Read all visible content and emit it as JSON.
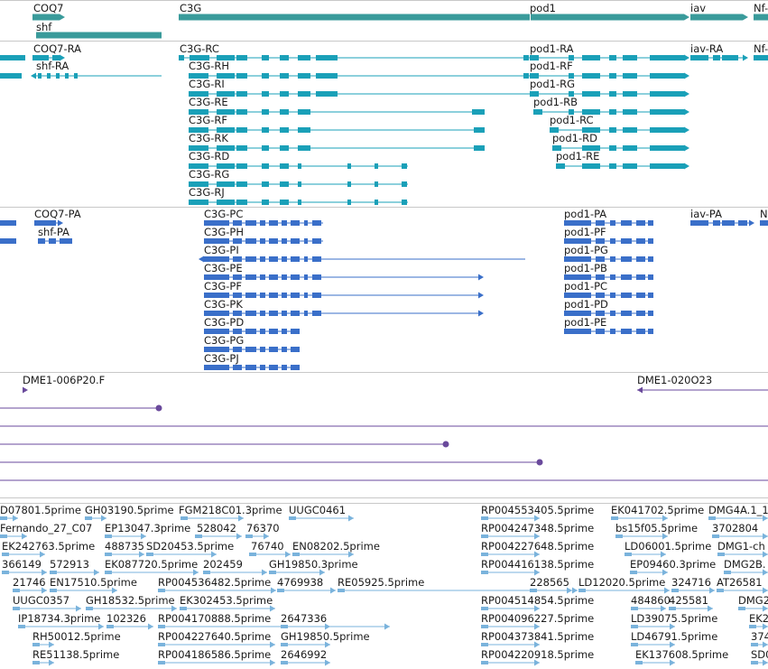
{
  "colors": {
    "gene": "#3a9b9b",
    "transcript_mrna": "#1aa0b8",
    "cds": "#3a6fc9",
    "clone": "#6a4a9c",
    "est": "#7ab3dc",
    "divider": "#c8c8c8"
  },
  "genes": {
    "labels": [
      "COQ7",
      "C3G",
      "pod1",
      "iav",
      "Nf-",
      "shf"
    ]
  },
  "transcripts": {
    "labels": [
      "COQ7-RA",
      "shf-RA",
      "C3G-RC",
      "C3G-RH",
      "C3G-RI",
      "C3G-RE",
      "C3G-RF",
      "C3G-RK",
      "C3G-RD",
      "C3G-RG",
      "C3G-RJ",
      "pod1-RA",
      "pod1-RF",
      "pod1-RG",
      "pod1-RB",
      "pod1-RC",
      "pod1-RD",
      "pod1-RE",
      "iav-RA",
      "Nf-"
    ]
  },
  "cds": {
    "labels": [
      "COQ7-PA",
      "shf-PA",
      "C3G-PC",
      "C3G-PH",
      "C3G-PI",
      "C3G-PE",
      "C3G-PF",
      "C3G-PK",
      "C3G-PD",
      "C3G-PG",
      "C3G-PJ",
      "pod1-PA",
      "pod1-PF",
      "pod1-PG",
      "pod1-PB",
      "pod1-PC",
      "pod1-PD",
      "pod1-PE",
      "iav-PA",
      "N"
    ]
  },
  "clones": {
    "labels": [
      "DME1-006P20.F",
      "DME1-020O23"
    ]
  },
  "ests": {
    "labels": [
      "D07801.5prime",
      "GH03190.5prime",
      "FGM218C01.3prime",
      "UUGC0461",
      "RP004553405.5prime",
      "EK041702.5prime",
      "DMG4A.1_1",
      "Fernando_27_C07",
      "EP13047.3prime",
      "528042",
      "76370",
      "RP004247348.5prime",
      "bs15f05.5prime",
      "3702804",
      "EK242763.5prime",
      "488735",
      "SD20453.5prime",
      "76740",
      "EN08202.5prime",
      "RP004227648.5prime",
      "LD06001.5prime",
      "DMG1-ch",
      "366149",
      "572913",
      "EK087720.5prime",
      "202459",
      "GH19850.3prime",
      "RP004416138.5prime",
      "EP09460.3prime",
      "DMG2B.",
      "21746",
      "EN17510.5prime",
      "RP004536482.5prime",
      "4769938",
      "RE05925.5prime",
      "228565",
      "LD12020.5prime",
      "324716",
      "AT26581",
      "UUGC0357",
      "GH18532.5prime",
      "EK302453.5prime",
      "RP004514854.5prime",
      "484860",
      "425581",
      "DMG2",
      "IP18734.3prime",
      "102326",
      "RP004170888.5prime",
      "2647336",
      "RP004096227.5prime",
      "LD39075.5prime",
      "EK2",
      "RH50012.5prime",
      "RP004227640.5prime",
      "GH19850.5prime",
      "RP004373841.5prime",
      "LD46791.5prime",
      "374",
      "RE51138.5prime",
      "RP004186586.5prime",
      "2646992",
      "RP004220918.5prime",
      "EK137608.5prime",
      "SD0"
    ]
  }
}
